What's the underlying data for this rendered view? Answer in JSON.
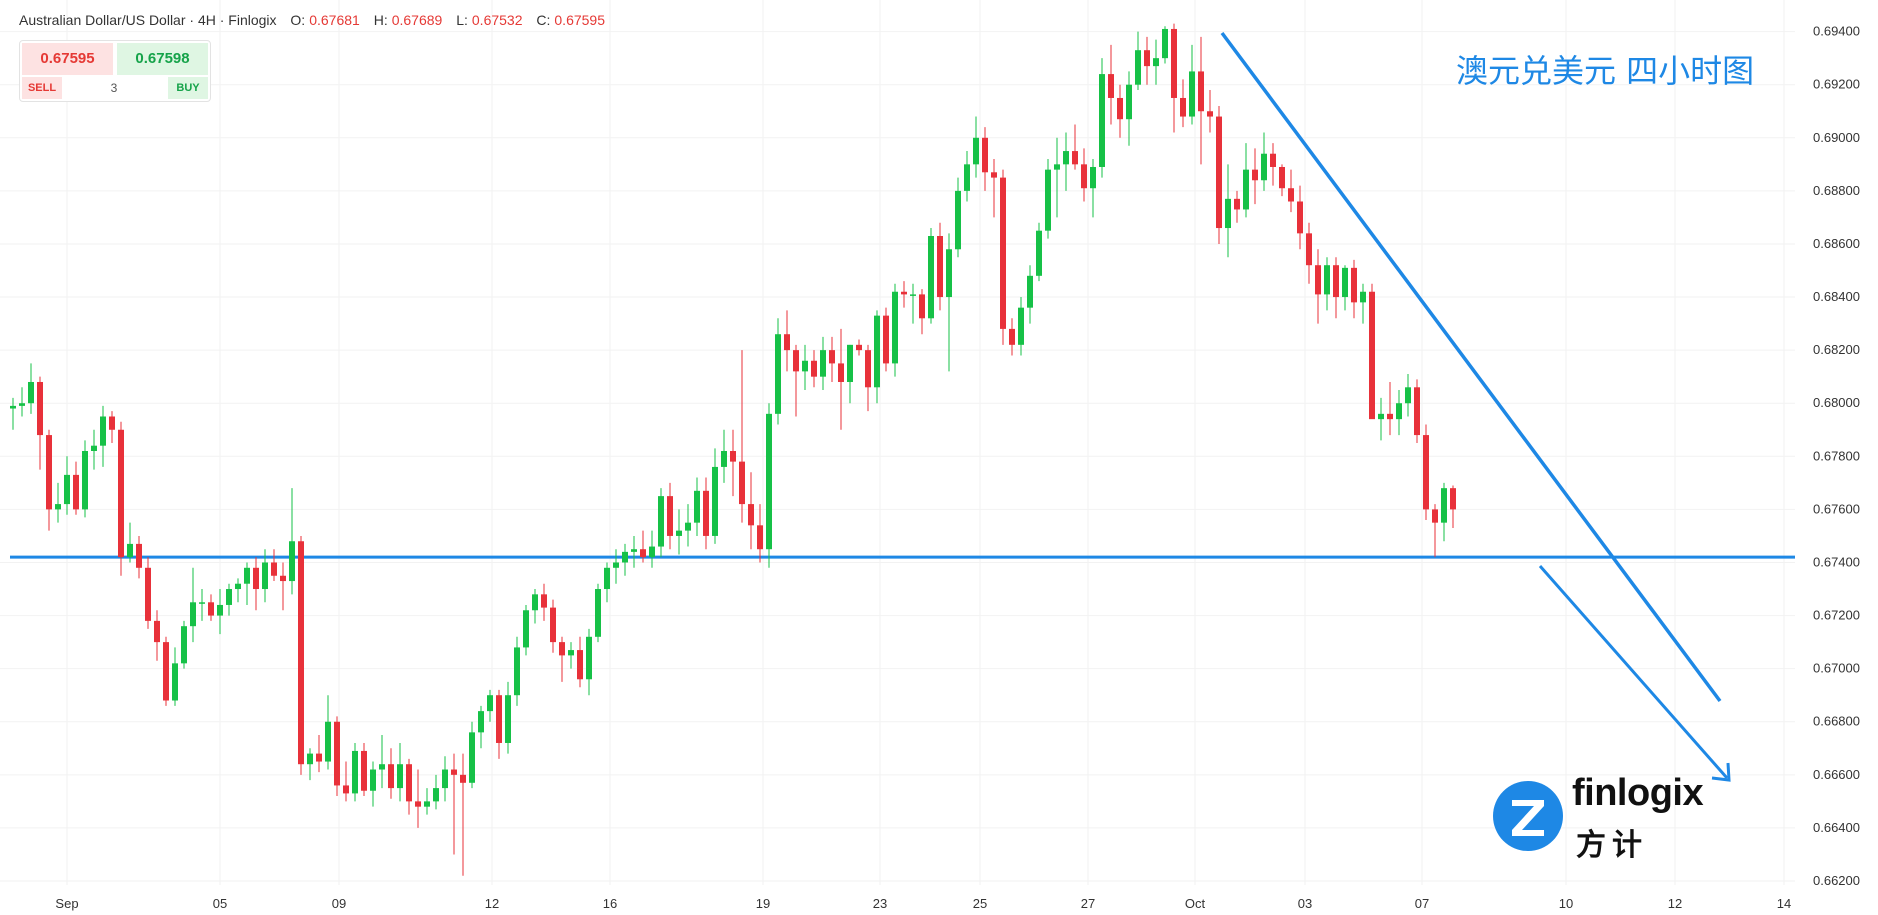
{
  "header": {
    "symbol": "Australian Dollar/US Dollar · 4H · Finlogix",
    "o_label": "O:",
    "o_value": "0.67681",
    "h_label": "H:",
    "h_value": "0.67689",
    "l_label": "L:",
    "l_value": "0.67532",
    "c_label": "C:",
    "c_value": "0.67595"
  },
  "trade": {
    "sell_price": "0.67595",
    "buy_price": "0.67598",
    "sell_label": "SELL",
    "buy_label": "BUY",
    "quantity": "3"
  },
  "annotation": {
    "title_cn": "澳元兑美元 四小时图"
  },
  "logo": {
    "name": "finlogix",
    "name_cn": "方计",
    "icon": "z-logo-icon"
  },
  "colors": {
    "up": "#16c147",
    "down": "#e8313a",
    "trendline": "#1e88e5",
    "grid": "#f2f2f2"
  },
  "chart_data": {
    "type": "candlestick",
    "timeframe": "4H",
    "ylim": [
      0.662,
      0.695
    ],
    "price_ticks": [
      "0.69400",
      "0.69200",
      "0.69000",
      "0.68800",
      "0.68600",
      "0.68400",
      "0.68200",
      "0.68000",
      "0.67800",
      "0.67600",
      "0.67400",
      "0.67200",
      "0.67000",
      "0.66800",
      "0.66600",
      "0.66400",
      "0.66200"
    ],
    "x_ticks": [
      "Sep",
      "05",
      "09",
      "12",
      "16",
      "19",
      "23",
      "25",
      "27",
      "Oct",
      "03",
      "07",
      "10",
      "12",
      "14"
    ],
    "support_level": 0.6742,
    "trendline": {
      "from": [
        "2024-10-01",
        0.6936
      ],
      "to": [
        "2024-10-13",
        0.6677
      ]
    },
    "projection_arrow": {
      "from": [
        "2024-10-09",
        0.6735
      ],
      "to": [
        "2024-10-14",
        0.6656
      ]
    },
    "candles_ohlc": [
      [
        0.6798,
        0.6802,
        0.679,
        0.6799
      ],
      [
        0.6799,
        0.6806,
        0.6795,
        0.68
      ],
      [
        0.68,
        0.6815,
        0.6796,
        0.6808
      ],
      [
        0.6808,
        0.681,
        0.6775,
        0.6788
      ],
      [
        0.6788,
        0.679,
        0.6752,
        0.676
      ],
      [
        0.676,
        0.677,
        0.6755,
        0.6762
      ],
      [
        0.6762,
        0.678,
        0.6758,
        0.6773
      ],
      [
        0.6773,
        0.6778,
        0.6758,
        0.676
      ],
      [
        0.676,
        0.6786,
        0.6757,
        0.6782
      ],
      [
        0.6782,
        0.679,
        0.6775,
        0.6784
      ],
      [
        0.6784,
        0.6799,
        0.6776,
        0.6795
      ],
      [
        0.6795,
        0.6797,
        0.6785,
        0.679
      ],
      [
        0.679,
        0.6793,
        0.6735,
        0.6742
      ],
      [
        0.6742,
        0.6755,
        0.674,
        0.6747
      ],
      [
        0.6747,
        0.675,
        0.6734,
        0.6738
      ],
      [
        0.6738,
        0.6742,
        0.6715,
        0.6718
      ],
      [
        0.6718,
        0.6722,
        0.6703,
        0.671
      ],
      [
        0.671,
        0.6712,
        0.6686,
        0.6688
      ],
      [
        0.6688,
        0.6708,
        0.6686,
        0.6702
      ],
      [
        0.6702,
        0.6718,
        0.67,
        0.6716
      ],
      [
        0.6716,
        0.6738,
        0.671,
        0.6725
      ],
      [
        0.6725,
        0.673,
        0.6718,
        0.6725
      ],
      [
        0.6725,
        0.6728,
        0.6718,
        0.672
      ],
      [
        0.672,
        0.673,
        0.6713,
        0.6724
      ],
      [
        0.6724,
        0.6732,
        0.672,
        0.673
      ],
      [
        0.673,
        0.6734,
        0.6725,
        0.6732
      ],
      [
        0.6732,
        0.674,
        0.6724,
        0.6738
      ],
      [
        0.6738,
        0.6742,
        0.6722,
        0.673
      ],
      [
        0.673,
        0.6745,
        0.6725,
        0.674
      ],
      [
        0.674,
        0.6745,
        0.6733,
        0.6735
      ],
      [
        0.6735,
        0.674,
        0.6722,
        0.6733
      ],
      [
        0.6733,
        0.6768,
        0.6728,
        0.6748
      ],
      [
        0.6748,
        0.675,
        0.666,
        0.6664
      ],
      [
        0.6664,
        0.667,
        0.6658,
        0.6668
      ],
      [
        0.6668,
        0.6675,
        0.6661,
        0.6665
      ],
      [
        0.6665,
        0.669,
        0.6662,
        0.668
      ],
      [
        0.668,
        0.6682,
        0.6652,
        0.6656
      ],
      [
        0.6656,
        0.6665,
        0.665,
        0.6653
      ],
      [
        0.6653,
        0.6672,
        0.665,
        0.6669
      ],
      [
        0.6669,
        0.6672,
        0.6652,
        0.6654
      ],
      [
        0.6654,
        0.6665,
        0.6648,
        0.6662
      ],
      [
        0.6662,
        0.6675,
        0.6655,
        0.6664
      ],
      [
        0.6664,
        0.667,
        0.6651,
        0.6655
      ],
      [
        0.6655,
        0.6672,
        0.665,
        0.6664
      ],
      [
        0.6664,
        0.6666,
        0.6645,
        0.665
      ],
      [
        0.665,
        0.6662,
        0.664,
        0.6648
      ],
      [
        0.6648,
        0.6655,
        0.6645,
        0.665
      ],
      [
        0.665,
        0.666,
        0.6647,
        0.6655
      ],
      [
        0.6655,
        0.6667,
        0.665,
        0.6662
      ],
      [
        0.6662,
        0.6668,
        0.663,
        0.666
      ],
      [
        0.666,
        0.6668,
        0.6622,
        0.6657
      ],
      [
        0.6657,
        0.668,
        0.6655,
        0.6676
      ],
      [
        0.6676,
        0.6686,
        0.667,
        0.6684
      ],
      [
        0.6684,
        0.6692,
        0.668,
        0.669
      ],
      [
        0.669,
        0.6692,
        0.6666,
        0.6672
      ],
      [
        0.6672,
        0.6695,
        0.6668,
        0.669
      ],
      [
        0.669,
        0.6712,
        0.6686,
        0.6708
      ],
      [
        0.6708,
        0.6724,
        0.6705,
        0.6722
      ],
      [
        0.6722,
        0.673,
        0.6717,
        0.6728
      ],
      [
        0.6728,
        0.6732,
        0.6718,
        0.6723
      ],
      [
        0.6723,
        0.6726,
        0.6706,
        0.671
      ],
      [
        0.671,
        0.6712,
        0.6695,
        0.6705
      ],
      [
        0.6705,
        0.671,
        0.67,
        0.6707
      ],
      [
        0.6707,
        0.6712,
        0.6693,
        0.6696
      ],
      [
        0.6696,
        0.6715,
        0.669,
        0.6712
      ],
      [
        0.6712,
        0.6732,
        0.671,
        0.673
      ],
      [
        0.673,
        0.674,
        0.6725,
        0.6738
      ],
      [
        0.6738,
        0.6745,
        0.6732,
        0.674
      ],
      [
        0.674,
        0.6747,
        0.6735,
        0.6744
      ],
      [
        0.6744,
        0.675,
        0.6738,
        0.6745
      ],
      [
        0.6745,
        0.6752,
        0.674,
        0.6742
      ],
      [
        0.6742,
        0.6752,
        0.6738,
        0.6746
      ],
      [
        0.6746,
        0.6768,
        0.6742,
        0.6765
      ],
      [
        0.6765,
        0.677,
        0.6745,
        0.675
      ],
      [
        0.675,
        0.676,
        0.6743,
        0.6752
      ],
      [
        0.6752,
        0.6762,
        0.6746,
        0.6755
      ],
      [
        0.6755,
        0.6772,
        0.675,
        0.6767
      ],
      [
        0.6767,
        0.6772,
        0.6745,
        0.675
      ],
      [
        0.675,
        0.6783,
        0.6747,
        0.6776
      ],
      [
        0.6776,
        0.679,
        0.677,
        0.6782
      ],
      [
        0.6782,
        0.679,
        0.6765,
        0.6778
      ],
      [
        0.6778,
        0.682,
        0.6755,
        0.6762
      ],
      [
        0.6762,
        0.6774,
        0.6745,
        0.6754
      ],
      [
        0.6754,
        0.6762,
        0.674,
        0.6745
      ],
      [
        0.6745,
        0.68,
        0.6738,
        0.6796
      ],
      [
        0.6796,
        0.6832,
        0.6792,
        0.6826
      ],
      [
        0.6826,
        0.6835,
        0.6812,
        0.682
      ],
      [
        0.682,
        0.6822,
        0.6795,
        0.6812
      ],
      [
        0.6812,
        0.6822,
        0.6805,
        0.6816
      ],
      [
        0.6816,
        0.682,
        0.6806,
        0.681
      ],
      [
        0.681,
        0.6825,
        0.6805,
        0.682
      ],
      [
        0.682,
        0.6825,
        0.6808,
        0.6815
      ],
      [
        0.6815,
        0.6828,
        0.679,
        0.6808
      ],
      [
        0.6808,
        0.6822,
        0.68,
        0.6822
      ],
      [
        0.6822,
        0.6824,
        0.6818,
        0.682
      ],
      [
        0.682,
        0.6822,
        0.6797,
        0.6806
      ],
      [
        0.6806,
        0.6835,
        0.68,
        0.6833
      ],
      [
        0.6833,
        0.6836,
        0.6812,
        0.6815
      ],
      [
        0.6815,
        0.6845,
        0.681,
        0.6842
      ],
      [
        0.6842,
        0.6846,
        0.6836,
        0.6841
      ],
      [
        0.6841,
        0.6845,
        0.683,
        0.6841
      ],
      [
        0.6841,
        0.6843,
        0.6826,
        0.6832
      ],
      [
        0.6832,
        0.6866,
        0.683,
        0.6863
      ],
      [
        0.6863,
        0.6868,
        0.6835,
        0.684
      ],
      [
        0.684,
        0.6864,
        0.6812,
        0.6858
      ],
      [
        0.6858,
        0.6885,
        0.6855,
        0.688
      ],
      [
        0.688,
        0.6895,
        0.6876,
        0.689
      ],
      [
        0.689,
        0.6908,
        0.6885,
        0.69
      ],
      [
        0.69,
        0.6904,
        0.688,
        0.6887
      ],
      [
        0.6887,
        0.6892,
        0.687,
        0.6885
      ],
      [
        0.6885,
        0.6888,
        0.6822,
        0.6828
      ],
      [
        0.6828,
        0.6832,
        0.6818,
        0.6822
      ],
      [
        0.6822,
        0.684,
        0.6818,
        0.6836
      ],
      [
        0.6836,
        0.6852,
        0.683,
        0.6848
      ],
      [
        0.6848,
        0.6868,
        0.6846,
        0.6865
      ],
      [
        0.6865,
        0.6892,
        0.6862,
        0.6888
      ],
      [
        0.6888,
        0.69,
        0.687,
        0.689
      ],
      [
        0.689,
        0.6902,
        0.688,
        0.6895
      ],
      [
        0.6895,
        0.6905,
        0.6888,
        0.689
      ],
      [
        0.689,
        0.6896,
        0.6876,
        0.6881
      ],
      [
        0.6881,
        0.6892,
        0.687,
        0.6889
      ],
      [
        0.6889,
        0.693,
        0.6885,
        0.6924
      ],
      [
        0.6924,
        0.6935,
        0.6905,
        0.6915
      ],
      [
        0.6915,
        0.692,
        0.69,
        0.6907
      ],
      [
        0.6907,
        0.6925,
        0.6897,
        0.692
      ],
      [
        0.692,
        0.694,
        0.6918,
        0.6933
      ],
      [
        0.6933,
        0.6938,
        0.692,
        0.6927
      ],
      [
        0.6927,
        0.6937,
        0.692,
        0.693
      ],
      [
        0.693,
        0.6942,
        0.6928,
        0.6941
      ],
      [
        0.6941,
        0.6943,
        0.6902,
        0.6915
      ],
      [
        0.6915,
        0.6922,
        0.6904,
        0.6908
      ],
      [
        0.6908,
        0.6935,
        0.6905,
        0.6925
      ],
      [
        0.6925,
        0.6938,
        0.689,
        0.691
      ],
      [
        0.691,
        0.6918,
        0.6902,
        0.6908
      ],
      [
        0.6908,
        0.6912,
        0.686,
        0.6866
      ],
      [
        0.6866,
        0.689,
        0.6855,
        0.6877
      ],
      [
        0.6877,
        0.688,
        0.6868,
        0.6873
      ],
      [
        0.6873,
        0.6898,
        0.687,
        0.6888
      ],
      [
        0.6888,
        0.6896,
        0.6875,
        0.6884
      ],
      [
        0.6884,
        0.6902,
        0.688,
        0.6894
      ],
      [
        0.6894,
        0.6898,
        0.6882,
        0.6889
      ],
      [
        0.6889,
        0.689,
        0.6878,
        0.6881
      ],
      [
        0.6881,
        0.6888,
        0.6872,
        0.6876
      ],
      [
        0.6876,
        0.6882,
        0.6858,
        0.6864
      ],
      [
        0.6864,
        0.6868,
        0.6845,
        0.6852
      ],
      [
        0.6852,
        0.6858,
        0.683,
        0.6841
      ],
      [
        0.6841,
        0.6855,
        0.6835,
        0.6852
      ],
      [
        0.6852,
        0.6855,
        0.6832,
        0.684
      ],
      [
        0.684,
        0.6852,
        0.6835,
        0.6851
      ],
      [
        0.6851,
        0.6854,
        0.6832,
        0.6838
      ],
      [
        0.6838,
        0.6845,
        0.683,
        0.6842
      ],
      [
        0.6842,
        0.6845,
        0.68,
        0.6794
      ],
      [
        0.6794,
        0.6802,
        0.6786,
        0.6796
      ],
      [
        0.6796,
        0.6808,
        0.6788,
        0.6794
      ],
      [
        0.6794,
        0.6805,
        0.6788,
        0.68
      ],
      [
        0.68,
        0.6811,
        0.6795,
        0.6806
      ],
      [
        0.6806,
        0.6809,
        0.6785,
        0.6788
      ],
      [
        0.6788,
        0.6792,
        0.6756,
        0.676
      ],
      [
        0.676,
        0.6762,
        0.6742,
        0.6755
      ],
      [
        0.6755,
        0.677,
        0.6748,
        0.6768
      ],
      [
        0.6768,
        0.6769,
        0.6753,
        0.676
      ]
    ]
  }
}
